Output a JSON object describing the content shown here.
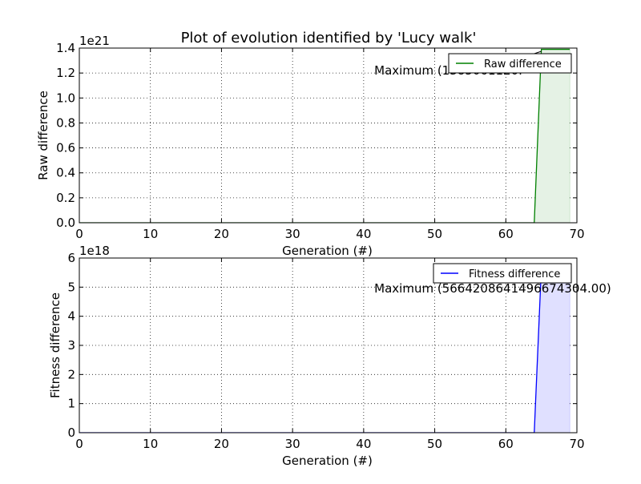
{
  "figure_title": "Plot of evolution identified by 'Lucy walk'",
  "colors": {
    "raw": "#008000",
    "raw_fill": "#e5f2e5",
    "fitness": "#0000ff",
    "fitness_fill": "#e0e0ff"
  },
  "chart_data": [
    {
      "type": "area",
      "title": "Plot of evolution identified by 'Lucy walk'",
      "xlabel": "Generation (#)",
      "ylabel": "Raw difference",
      "scale_label": "1e21",
      "xlim": [
        0,
        70
      ],
      "ylim": [
        0,
        1.4
      ],
      "xticks": [
        "0",
        "10",
        "20",
        "30",
        "40",
        "50",
        "60",
        "70"
      ],
      "yticks": [
        "0.0",
        "0.2",
        "0.4",
        "0.6",
        "0.8",
        "1.0",
        "1.2",
        "1.4"
      ],
      "grid": true,
      "legend_position": "top-right",
      "series": [
        {
          "name": "Raw difference",
          "x": [
            0,
            10,
            20,
            30,
            40,
            50,
            60,
            64,
            65,
            69
          ],
          "values": [
            0,
            0,
            0,
            0,
            0,
            0,
            0,
            0,
            1.39,
            1.39
          ]
        }
      ],
      "annotation": {
        "text": "Maximum (1385061120.",
        "hidden_text_note": "",
        "x": 41.5,
        "y": 1.22,
        "arrow_to_x": 65
      }
    },
    {
      "type": "area",
      "title": "",
      "xlabel": "Generation (#)",
      "ylabel": "Fitness difference",
      "scale_label": "1e18",
      "xlim": [
        0,
        70
      ],
      "ylim": [
        0,
        6
      ],
      "xticks": [
        "0",
        "10",
        "20",
        "30",
        "40",
        "50",
        "60",
        "70"
      ],
      "yticks": [
        "0",
        "1",
        "2",
        "3",
        "4",
        "5",
        "6"
      ],
      "grid": true,
      "legend_position": "top-right",
      "series": [
        {
          "name": "Fitness difference",
          "x": [
            0,
            10,
            20,
            30,
            40,
            50,
            60,
            64,
            65,
            69
          ],
          "values": [
            0,
            0,
            0,
            0,
            0,
            0,
            0,
            0,
            5.66,
            5.66
          ]
        }
      ],
      "annotation": {
        "text": "Maximum (5664208641496674304.00)",
        "x": 41.5,
        "y": 4.95
      }
    }
  ]
}
